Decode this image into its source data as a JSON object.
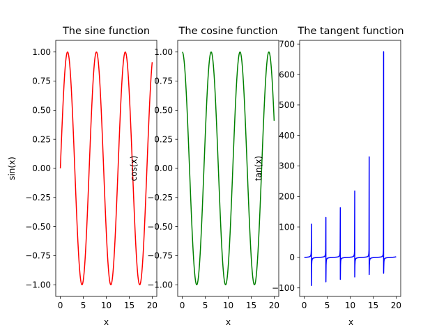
{
  "chart_data": [
    {
      "type": "line",
      "title": "The sine function",
      "xlabel": "x",
      "ylabel": "sin(x)",
      "function": "sin",
      "color": "#ff0000",
      "x_range": [
        0,
        20
      ],
      "xlim": [
        -1,
        21
      ],
      "ylim": [
        -1.1,
        1.1
      ],
      "xticks": [
        0,
        5,
        10,
        15,
        20
      ],
      "xtick_labels": [
        "0",
        "5",
        "10",
        "15",
        "20"
      ],
      "yticks": [
        -1.0,
        -0.75,
        -0.5,
        -0.25,
        0.0,
        0.25,
        0.5,
        0.75,
        1.0
      ],
      "ytick_labels": [
        "−1.00",
        "−0.75",
        "−0.50",
        "−0.25",
        "0.00",
        "0.25",
        "0.50",
        "0.75",
        "1.00"
      ],
      "grid": false,
      "x": [
        0,
        1.5708,
        3.1416,
        4.7124,
        6.2832,
        7.854,
        9.4248,
        10.9956,
        12.5664,
        14.1372,
        15.708,
        17.2788,
        18.8496,
        20
      ],
      "y": [
        0,
        1,
        0,
        -1,
        0,
        1,
        0,
        -1,
        0,
        1,
        0,
        -1,
        0,
        0.913
      ]
    },
    {
      "type": "line",
      "title": "The cosine function",
      "xlabel": "x",
      "ylabel": "cos(x)",
      "function": "cos",
      "color": "#008000",
      "x_range": [
        0,
        20
      ],
      "xlim": [
        -1,
        21
      ],
      "ylim": [
        -1.1,
        1.1
      ],
      "xticks": [
        0,
        5,
        10,
        15,
        20
      ],
      "xtick_labels": [
        "0",
        "5",
        "10",
        "15",
        "20"
      ],
      "yticks": [
        -1.0,
        -0.75,
        -0.5,
        -0.25,
        0.0,
        0.25,
        0.5,
        0.75,
        1.0
      ],
      "ytick_labels": [
        "−1.00",
        "−0.75",
        "−0.50",
        "−0.25",
        "0.00",
        "0.25",
        "0.50",
        "0.75",
        "1.00"
      ],
      "grid": false,
      "x": [
        0,
        1.5708,
        3.1416,
        4.7124,
        6.2832,
        7.854,
        9.4248,
        10.9956,
        12.5664,
        14.1372,
        15.708,
        17.2788,
        18.8496,
        20
      ],
      "y": [
        1,
        0,
        -1,
        0,
        1,
        0,
        -1,
        0,
        1,
        0,
        -1,
        0,
        1,
        0.408
      ]
    },
    {
      "type": "line",
      "title": "The tangent function",
      "xlabel": "x",
      "ylabel": "tan(x)",
      "function": "tan",
      "color": "#0000ff",
      "x_range": [
        0,
        20
      ],
      "xlim": [
        -1,
        21
      ],
      "ylim": [
        -128,
        712
      ],
      "xticks": [
        0,
        5,
        10,
        15,
        20
      ],
      "xtick_labels": [
        "0",
        "5",
        "10",
        "15",
        "20"
      ],
      "yticks": [
        -100,
        0,
        100,
        200,
        300,
        400,
        500,
        600,
        700
      ],
      "ytick_labels": [
        "−100",
        "0",
        "100",
        "200",
        "300",
        "400",
        "500",
        "600",
        "700"
      ],
      "grid": false,
      "spikes": [
        {
          "x": 1.5708,
          "high": 109,
          "low": -92
        },
        {
          "x": 4.7124,
          "high": 131,
          "low": -80
        },
        {
          "x": 7.854,
          "high": 163,
          "low": -72
        },
        {
          "x": 10.9956,
          "high": 218,
          "low": -64
        },
        {
          "x": 14.1372,
          "high": 330,
          "low": -56
        },
        {
          "x": 17.2788,
          "high": 675,
          "low": -52
        }
      ],
      "y_at_end": 2.24
    }
  ]
}
